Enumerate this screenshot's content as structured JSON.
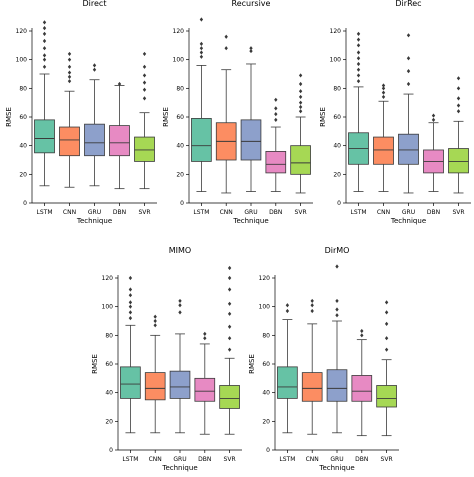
{
  "chart_data": [
    {
      "type": "box",
      "title": "Direct",
      "xlabel": "Technique",
      "ylabel": "RMSE",
      "ylim": [
        0,
        120
      ],
      "yticks": [
        "0",
        "20",
        "40",
        "60",
        "80",
        "100",
        "120"
      ],
      "categories": [
        "LSTM",
        "CNN",
        "GRU",
        "DBN",
        "SVR"
      ],
      "boxes": [
        {
          "min": 12,
          "q1": 35,
          "median": 45,
          "q3": 58,
          "max": 90,
          "fliers": [
            95,
            100,
            103,
            108,
            113,
            118,
            122,
            126
          ]
        },
        {
          "min": 11,
          "q1": 33,
          "median": 44,
          "q3": 53,
          "max": 78,
          "fliers": [
            85,
            88,
            91,
            95,
            100,
            104
          ]
        },
        {
          "min": 12,
          "q1": 33,
          "median": 42,
          "q3": 55,
          "max": 86,
          "fliers": [
            93,
            96
          ]
        },
        {
          "min": 10,
          "q1": 33,
          "median": 42,
          "q3": 54,
          "max": 82,
          "fliers": [
            83
          ]
        },
        {
          "min": 10,
          "q1": 29,
          "median": 37,
          "q3": 46,
          "max": 63,
          "fliers": [
            73,
            79,
            84,
            89,
            95,
            104
          ]
        }
      ]
    },
    {
      "type": "box",
      "title": "Recursive",
      "xlabel": "Technique",
      "ylabel": "RMSE",
      "ylim": [
        0,
        120
      ],
      "yticks": [
        "0",
        "20",
        "40",
        "60",
        "80",
        "100",
        "120"
      ],
      "categories": [
        "LSTM",
        "CNN",
        "GRU",
        "DBN",
        "SVR"
      ],
      "boxes": [
        {
          "min": 8,
          "q1": 29,
          "median": 40,
          "q3": 59,
          "max": 96,
          "fliers": [
            102,
            105,
            108,
            111,
            128
          ]
        },
        {
          "min": 7,
          "q1": 30,
          "median": 43,
          "q3": 56,
          "max": 93,
          "fliers": [
            108,
            116
          ]
        },
        {
          "min": 8,
          "q1": 30,
          "median": 43,
          "q3": 58,
          "max": 97,
          "fliers": [
            106,
            108
          ]
        },
        {
          "min": 8,
          "q1": 21,
          "median": 27,
          "q3": 36,
          "max": 53,
          "fliers": [
            58,
            62,
            66,
            72
          ]
        },
        {
          "min": 7,
          "q1": 20,
          "median": 28,
          "q3": 40,
          "max": 60,
          "fliers": [
            64,
            67,
            70,
            74,
            78,
            83,
            89
          ]
        }
      ]
    },
    {
      "type": "box",
      "title": "DirRec",
      "xlabel": "Technique",
      "ylabel": "RMSE",
      "ylim": [
        0,
        120
      ],
      "yticks": [
        "0",
        "20",
        "40",
        "60",
        "80",
        "100",
        "120"
      ],
      "categories": [
        "LSTM",
        "CNN",
        "GRU",
        "DBN",
        "SVR"
      ],
      "boxes": [
        {
          "min": 8,
          "q1": 27,
          "median": 38,
          "q3": 49,
          "max": 81,
          "fliers": [
            85,
            89,
            93,
            97,
            101,
            105,
            110,
            114,
            118
          ]
        },
        {
          "min": 8,
          "q1": 27,
          "median": 37,
          "q3": 46,
          "max": 71,
          "fliers": [
            74,
            77,
            80,
            82
          ]
        },
        {
          "min": 7,
          "q1": 27,
          "median": 37,
          "q3": 48,
          "max": 76,
          "fliers": [
            83,
            92,
            101,
            117
          ]
        },
        {
          "min": 8,
          "q1": 21,
          "median": 29,
          "q3": 37,
          "max": 56,
          "fliers": [
            58,
            61
          ]
        },
        {
          "min": 7,
          "q1": 21,
          "median": 29,
          "q3": 38,
          "max": 57,
          "fliers": [
            64,
            68,
            73,
            80,
            87
          ]
        }
      ]
    },
    {
      "type": "box",
      "title": "MIMO",
      "xlabel": "Technique",
      "ylabel": "RMSE",
      "ylim": [
        0,
        120
      ],
      "yticks": [
        "0",
        "20",
        "40",
        "60",
        "80",
        "100",
        "120"
      ],
      "categories": [
        "LSTM",
        "CNN",
        "GRU",
        "DBN",
        "SVR"
      ],
      "boxes": [
        {
          "min": 12,
          "q1": 36,
          "median": 46,
          "q3": 58,
          "max": 87,
          "fliers": [
            92,
            96,
            100,
            103,
            108,
            112,
            120
          ]
        },
        {
          "min": 12,
          "q1": 35,
          "median": 43,
          "q3": 54,
          "max": 80,
          "fliers": [
            87,
            90,
            93
          ]
        },
        {
          "min": 12,
          "q1": 36,
          "median": 44,
          "q3": 55,
          "max": 81,
          "fliers": [
            96,
            101,
            104
          ]
        },
        {
          "min": 11,
          "q1": 34,
          "median": 41,
          "q3": 50,
          "max": 74,
          "fliers": [
            78,
            81
          ]
        },
        {
          "min": 11,
          "q1": 29,
          "median": 36,
          "q3": 45,
          "max": 64,
          "fliers": [
            70,
            78,
            86,
            95,
            102,
            112,
            120,
            127
          ]
        }
      ]
    },
    {
      "type": "box",
      "title": "DirMO",
      "xlabel": "Technique",
      "ylabel": "RMSE",
      "ylim": [
        0,
        120
      ],
      "yticks": [
        "0",
        "20",
        "40",
        "60",
        "80",
        "100",
        "120"
      ],
      "categories": [
        "LSTM",
        "CNN",
        "GRU",
        "DBN",
        "SVR"
      ],
      "boxes": [
        {
          "min": 12,
          "q1": 36,
          "median": 44,
          "q3": 58,
          "max": 91,
          "fliers": [
            97,
            101
          ]
        },
        {
          "min": 11,
          "q1": 34,
          "median": 43,
          "q3": 54,
          "max": 88,
          "fliers": [
            97,
            101,
            104
          ]
        },
        {
          "min": 12,
          "q1": 34,
          "median": 43,
          "q3": 56,
          "max": 90,
          "fliers": [
            94,
            98,
            104,
            128
          ]
        },
        {
          "min": 10,
          "q1": 34,
          "median": 41,
          "q3": 52,
          "max": 77,
          "fliers": [
            80,
            83
          ]
        },
        {
          "min": 10,
          "q1": 30,
          "median": 36,
          "q3": 45,
          "max": 63,
          "fliers": [
            70,
            78,
            88,
            96,
            103
          ]
        }
      ]
    }
  ],
  "colors": [
    "#66c2a5",
    "#fc8d62",
    "#8da0cb",
    "#e78ac3",
    "#a6d854"
  ]
}
